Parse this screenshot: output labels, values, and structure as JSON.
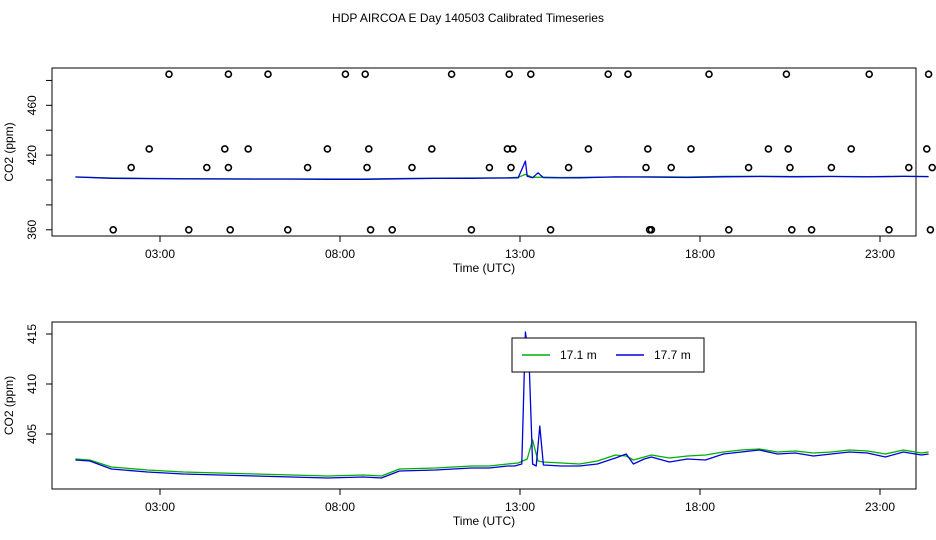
{
  "title": "HDP AIRCOA E  Day 140503  Calibrated Timeseries",
  "colors": {
    "frame": "#000000",
    "green": "#00b000",
    "blue": "#0000dd"
  },
  "chart_data": [
    {
      "type": "line",
      "name": "top-panel",
      "xlabel": "Time (UTC)",
      "ylabel": "CO2 (ppm)",
      "xlim": [
        0,
        24
      ],
      "ylim": [
        355,
        490
      ],
      "xticks": [
        3,
        8,
        13,
        18,
        23
      ],
      "xtick_labels": [
        "03:00",
        "08:00",
        "13:00",
        "18:00",
        "23:00"
      ],
      "yticks": [
        360,
        380,
        400,
        420,
        440,
        460,
        480
      ],
      "ytick_labels": [
        "360",
        "",
        "",
        "420",
        "",
        "460",
        ""
      ],
      "series": [
        {
          "color": "#00b000",
          "x": [
            0.0,
            1.0,
            2.0,
            3.0,
            4.0,
            5.0,
            6.0,
            7.0,
            8.0,
            9.0,
            10.0,
            11.0,
            11.5,
            12.0,
            12.3,
            12.5,
            12.7,
            13.0,
            13.5,
            14.0,
            15.0,
            16.0,
            17.0,
            18.0,
            19.0,
            20.0,
            21.0,
            22.0,
            23.0,
            23.7
          ],
          "y": [
            402.5,
            401.6,
            401.3,
            401.1,
            401.0,
            400.9,
            400.9,
            400.8,
            400.8,
            401.2,
            401.5,
            401.6,
            401.7,
            401.8,
            402.2,
            404.5,
            402.1,
            402.3,
            402.0,
            402.1,
            402.4,
            402.6,
            402.4,
            402.9,
            403.0,
            402.8,
            402.9,
            402.7,
            403.0,
            402.8
          ]
        },
        {
          "color": "#0000dd",
          "x": [
            0.0,
            1.0,
            2.0,
            3.0,
            4.0,
            5.0,
            6.0,
            7.0,
            8.0,
            9.0,
            10.0,
            11.0,
            11.5,
            12.0,
            12.3,
            12.5,
            12.55,
            12.7,
            12.85,
            13.0,
            13.5,
            14.0,
            15.0,
            16.0,
            17.0,
            18.0,
            19.0,
            20.0,
            21.0,
            22.0,
            23.0,
            23.7
          ],
          "y": [
            402.4,
            401.4,
            401.1,
            400.9,
            400.8,
            400.7,
            400.7,
            400.6,
            400.6,
            401.0,
            401.3,
            401.4,
            401.5,
            401.6,
            401.8,
            415.2,
            403.0,
            401.8,
            405.8,
            401.9,
            401.7,
            401.8,
            402.5,
            402.3,
            402.0,
            402.6,
            402.8,
            402.6,
            402.8,
            402.5,
            402.9,
            402.7
          ]
        }
      ],
      "outliers_x": [
        0.55,
        1.05,
        1.55,
        2.1,
        2.65,
        3.15,
        3.65,
        3.75,
        3.75,
        3.8,
        4.3,
        4.85,
        5.4,
        5.95,
        6.5,
        7.0,
        7.55,
        7.6,
        7.65,
        7.7,
        8.3,
        8.85,
        9.4,
        9.95,
        10.5,
        11.0,
        11.5,
        11.55,
        11.6,
        11.65,
        12.15,
        12.7,
        13.2,
        13.75,
        14.3,
        14.85,
        15.35,
        15.4,
        15.45,
        15.5,
        16.05,
        16.6,
        17.1,
        17.65,
        18.2,
        18.75,
        19.25,
        19.3,
        19.35,
        19.4,
        19.95,
        20.5,
        21.05,
        21.55,
        22.1,
        22.65,
        23.15,
        23.2,
        23.25,
        23.3
      ],
      "outliers_y": [
        360,
        410,
        425,
        485,
        360,
        410,
        425,
        410,
        485,
        360,
        425,
        485,
        360,
        410,
        425,
        485,
        485,
        410,
        425,
        360,
        360,
        410,
        425,
        485,
        360,
        410,
        425,
        485,
        410,
        425,
        485,
        360,
        410,
        425,
        485,
        485,
        410,
        425,
        360,
        360,
        410,
        425,
        485,
        360,
        410,
        425,
        485,
        425,
        410,
        360,
        360,
        410,
        425,
        485,
        360,
        410,
        425,
        485,
        360,
        410
      ]
    },
    {
      "type": "line",
      "name": "bottom-panel",
      "xlabel": "Time (UTC)",
      "ylabel": "CO2 (ppm)",
      "xlim": [
        0,
        24
      ],
      "ylim": [
        399.5,
        416.2
      ],
      "xticks": [
        3,
        8,
        13,
        18,
        23
      ],
      "xtick_labels": [
        "03:00",
        "08:00",
        "13:00",
        "18:00",
        "23:00"
      ],
      "yticks": [
        405,
        410,
        415
      ],
      "ytick_labels": [
        "405",
        "410",
        "415"
      ],
      "legend": "top-center",
      "series": [
        {
          "name": "17.1 m",
          "color": "#00b000",
          "x": [
            0.0,
            0.4,
            1.0,
            2.0,
            3.0,
            4.0,
            5.0,
            6.0,
            7.0,
            8.0,
            8.5,
            9.0,
            10.0,
            11.0,
            11.5,
            12.0,
            12.3,
            12.55,
            12.7,
            12.85,
            13.0,
            13.5,
            14.0,
            14.5,
            15.0,
            15.3,
            15.5,
            15.8,
            16.0,
            16.5,
            17.0,
            17.5,
            18.0,
            18.5,
            19.0,
            19.5,
            20.0,
            20.5,
            21.0,
            21.5,
            22.0,
            22.5,
            23.0,
            23.5,
            23.7
          ],
          "y": [
            402.5,
            402.4,
            401.7,
            401.4,
            401.2,
            401.1,
            401.0,
            400.9,
            400.8,
            400.9,
            400.8,
            401.5,
            401.6,
            401.8,
            401.8,
            402.0,
            402.1,
            402.5,
            404.4,
            402.3,
            402.2,
            402.1,
            402.0,
            402.3,
            402.9,
            402.8,
            402.4,
            402.7,
            402.9,
            402.6,
            402.8,
            402.9,
            403.2,
            403.4,
            403.5,
            403.2,
            403.3,
            403.1,
            403.2,
            403.4,
            403.3,
            403.0,
            403.4,
            403.1,
            403.2
          ]
        },
        {
          "name": "17.7 m",
          "color": "#0000dd",
          "x": [
            0.0,
            0.4,
            1.0,
            2.0,
            3.0,
            4.0,
            5.0,
            6.0,
            7.0,
            8.0,
            8.5,
            9.0,
            10.0,
            11.0,
            11.5,
            12.0,
            12.2,
            12.4,
            12.5,
            12.6,
            12.7,
            12.8,
            12.9,
            13.0,
            13.5,
            14.0,
            14.5,
            15.0,
            15.3,
            15.5,
            15.8,
            16.0,
            16.5,
            17.0,
            17.5,
            18.0,
            18.5,
            19.0,
            19.5,
            20.0,
            20.5,
            21.0,
            21.5,
            22.0,
            22.5,
            23.0,
            23.5,
            23.7
          ],
          "y": [
            402.4,
            402.3,
            401.5,
            401.2,
            401.0,
            400.9,
            400.8,
            400.7,
            400.6,
            400.7,
            400.6,
            401.3,
            401.4,
            401.6,
            401.6,
            401.8,
            401.8,
            402.0,
            415.2,
            412.5,
            402.0,
            401.8,
            405.8,
            401.9,
            401.8,
            401.8,
            402.0,
            402.6,
            403.0,
            402.0,
            402.5,
            402.7,
            402.2,
            402.5,
            402.4,
            403.0,
            403.2,
            403.4,
            403.0,
            403.1,
            402.8,
            403.0,
            403.2,
            403.1,
            402.7,
            403.2,
            402.9,
            403.0
          ]
        }
      ]
    }
  ]
}
